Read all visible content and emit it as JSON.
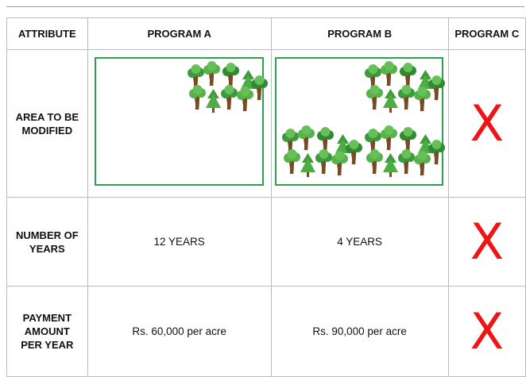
{
  "table": {
    "headers": [
      "ATTRIBUTE",
      "PROGRAM A",
      "PROGRAM B",
      "PROGRAM C"
    ],
    "rows": [
      {
        "attribute": "AREA TO BE MODIFIED",
        "program_c": "X"
      },
      {
        "attribute": "NUMBER OF YEARS",
        "program_a": "12 YEARS",
        "program_b": "4 YEARS",
        "program_c": "X"
      },
      {
        "attribute": "PAYMENT AMOUNT PER YEAR",
        "program_a": "Rs. 60,000 per acre",
        "program_b": "Rs. 90,000 per acre",
        "program_c": "X"
      }
    ]
  }
}
